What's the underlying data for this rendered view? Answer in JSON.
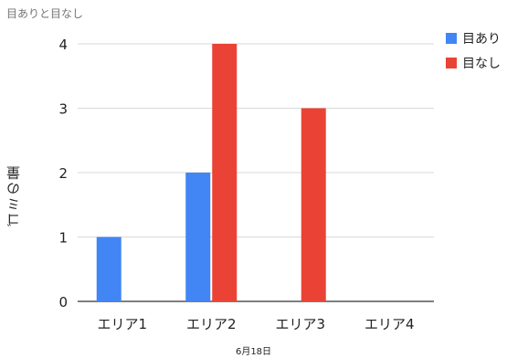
{
  "chart_data": {
    "type": "bar",
    "title": "目ありと目なし",
    "xlabel": "6月18日",
    "ylabel": "ゴミの量",
    "categories": [
      "エリア1",
      "エリア2",
      "エリア3",
      "エリア4"
    ],
    "series": [
      {
        "name": "目あり",
        "color": "#4285f4",
        "values": [
          1,
          2,
          0,
          0
        ]
      },
      {
        "name": "目なし",
        "color": "#ea4335",
        "values": [
          0,
          4,
          3,
          0
        ]
      }
    ],
    "ylim": [
      0,
      4
    ],
    "yticks": [
      "0",
      "1",
      "2",
      "3",
      "4"
    ],
    "grid": true,
    "legend": "top-right"
  }
}
